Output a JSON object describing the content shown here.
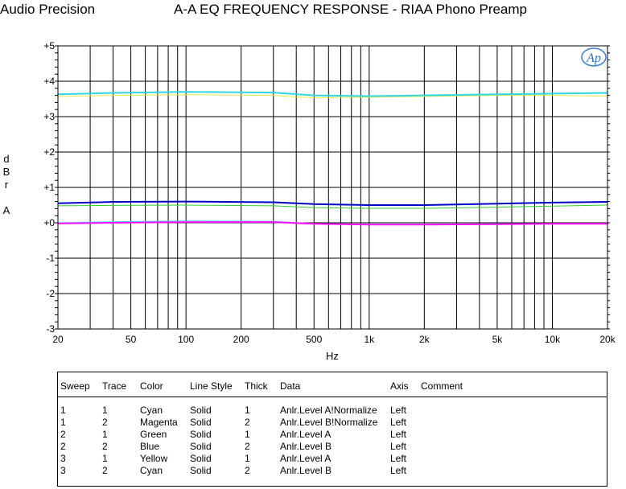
{
  "header": {
    "brand": "Audio Precision",
    "title": "A-A EQ FREQUENCY RESPONSE - RIAA Phono Preamp"
  },
  "chart_data": {
    "type": "line",
    "title": "A-A EQ FREQUENCY RESPONSE - RIAA Phono Preamp",
    "xlabel": "Hz",
    "ylabel": [
      "d",
      "B",
      "r",
      "",
      "A"
    ],
    "xscale": "log",
    "xlim": [
      20,
      20000
    ],
    "ylim": [
      -3,
      5
    ],
    "grid": true,
    "logo_text": "Ap",
    "x_ticks": [
      {
        "value": 20,
        "label": "20"
      },
      {
        "value": 50,
        "label": "50"
      },
      {
        "value": 100,
        "label": "100"
      },
      {
        "value": 200,
        "label": "200"
      },
      {
        "value": 500,
        "label": "500"
      },
      {
        "value": 1000,
        "label": "1k"
      },
      {
        "value": 2000,
        "label": "2k"
      },
      {
        "value": 5000,
        "label": "5k"
      },
      {
        "value": 10000,
        "label": "10k"
      },
      {
        "value": 20000,
        "label": "20k"
      }
    ],
    "y_ticks": [
      {
        "value": 5,
        "label": "+5"
      },
      {
        "value": 4,
        "label": "+4"
      },
      {
        "value": 3,
        "label": "+3"
      },
      {
        "value": 2,
        "label": "+2"
      },
      {
        "value": 1,
        "label": "+1"
      },
      {
        "value": 0,
        "label": "+0"
      },
      {
        "value": -1,
        "label": "-1"
      },
      {
        "value": -2,
        "label": "-2"
      },
      {
        "value": -3,
        "label": "-3"
      }
    ],
    "colors": {
      "Cyan": "#30d6e0",
      "Magenta": "#ff10ff",
      "Green": "#30d030",
      "Blue": "#0000c8",
      "Yellow": "#e8e840"
    },
    "series": [
      {
        "sweep": "1",
        "trace": "1",
        "color": "Cyan",
        "width": 1,
        "x": [
          20,
          40,
          100,
          300,
          500,
          1000,
          2000,
          5000,
          10000,
          20000
        ],
        "y": [
          0.0,
          0.03,
          0.05,
          0.04,
          -0.02,
          -0.04,
          -0.04,
          -0.03,
          -0.02,
          -0.02
        ]
      },
      {
        "sweep": "1",
        "trace": "2",
        "color": "Magenta",
        "width": 2,
        "x": [
          20,
          40,
          100,
          300,
          500,
          1000,
          2000,
          5000,
          10000,
          20000
        ],
        "y": [
          -0.02,
          0.0,
          0.02,
          0.02,
          -0.03,
          -0.05,
          -0.05,
          -0.04,
          -0.03,
          -0.03
        ]
      },
      {
        "sweep": "2",
        "trace": "1",
        "color": "Green",
        "width": 1,
        "x": [
          20,
          40,
          100,
          300,
          500,
          1000,
          2000,
          5000,
          10000,
          20000
        ],
        "y": [
          0.48,
          0.49,
          0.5,
          0.48,
          0.43,
          0.41,
          0.41,
          0.44,
          0.47,
          0.5
        ]
      },
      {
        "sweep": "2",
        "trace": "2",
        "color": "Blue",
        "width": 2,
        "x": [
          20,
          40,
          100,
          300,
          500,
          1000,
          2000,
          5000,
          10000,
          20000
        ],
        "y": [
          0.55,
          0.59,
          0.6,
          0.58,
          0.53,
          0.5,
          0.5,
          0.54,
          0.57,
          0.59
        ]
      },
      {
        "sweep": "3",
        "trace": "1",
        "color": "Yellow",
        "width": 1,
        "x": [
          20,
          40,
          100,
          300,
          500,
          1000,
          2000,
          5000,
          10000,
          20000
        ],
        "y": [
          3.57,
          3.6,
          3.62,
          3.6,
          3.53,
          3.55,
          3.57,
          3.6,
          3.6,
          3.58
        ]
      },
      {
        "sweep": "3",
        "trace": "2",
        "color": "Cyan",
        "width": 2,
        "x": [
          20,
          40,
          100,
          300,
          500,
          1000,
          2000,
          5000,
          10000,
          20000
        ],
        "y": [
          3.63,
          3.67,
          3.7,
          3.68,
          3.6,
          3.58,
          3.6,
          3.63,
          3.65,
          3.67
        ]
      }
    ]
  },
  "legend": {
    "headers": {
      "sweep": "Sweep",
      "trace": "Trace",
      "color": "Color",
      "style": "Line Style",
      "thick": "Thick",
      "data": "Data",
      "axis": "Axis",
      "comment": "Comment"
    },
    "rows": [
      {
        "sweep": "1",
        "trace": "1",
        "color": "Cyan",
        "style": "Solid",
        "thick": "1",
        "data": "Anlr.Level A!Normalize",
        "axis": "Left",
        "comment": ""
      },
      {
        "sweep": "1",
        "trace": "2",
        "color": "Magenta",
        "style": "Solid",
        "thick": "2",
        "data": "Anlr.Level B!Normalize",
        "axis": "Left",
        "comment": ""
      },
      {
        "sweep": "2",
        "trace": "1",
        "color": "Green",
        "style": "Solid",
        "thick": "1",
        "data": "Anlr.Level A",
        "axis": "Left",
        "comment": ""
      },
      {
        "sweep": "2",
        "trace": "2",
        "color": "Blue",
        "style": "Solid",
        "thick": "2",
        "data": "Anlr.Level B",
        "axis": "Left",
        "comment": ""
      },
      {
        "sweep": "3",
        "trace": "1",
        "color": "Yellow",
        "style": "Solid",
        "thick": "1",
        "data": "Anlr.Level A",
        "axis": "Left",
        "comment": ""
      },
      {
        "sweep": "3",
        "trace": "2",
        "color": "Cyan",
        "style": "Solid",
        "thick": "2",
        "data": "Anlr.Level B",
        "axis": "Left",
        "comment": ""
      }
    ]
  }
}
